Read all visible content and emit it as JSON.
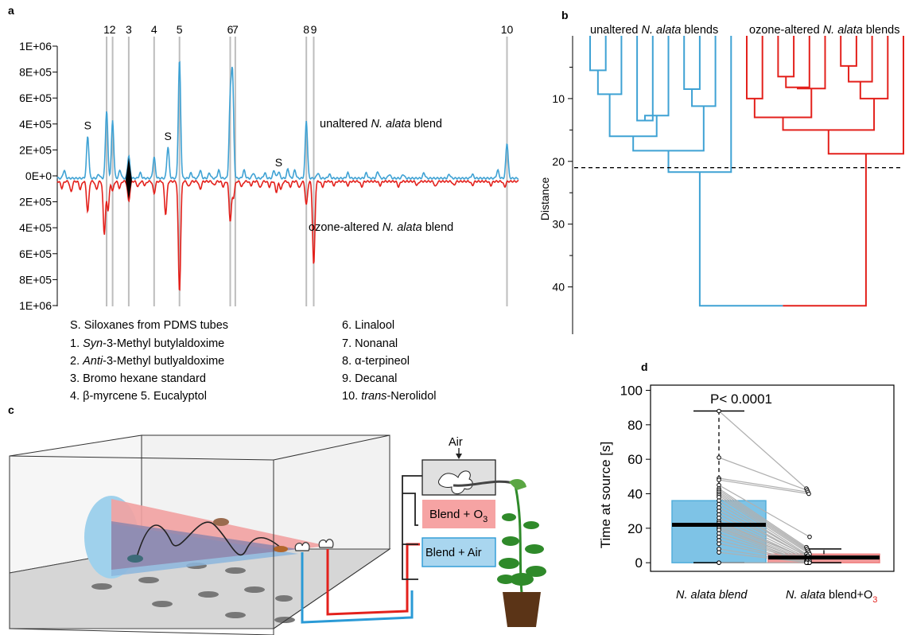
{
  "panel_labels": {
    "a": "a",
    "b": "b",
    "c": "c",
    "d": "d"
  },
  "chart_data": [
    {
      "panel": "a",
      "type": "line",
      "title": "",
      "ylabel": "",
      "yticks": [
        "1E+06",
        "8E+05",
        "6E+05",
        "4E+05",
        "2E+05",
        "0E+0",
        "2E+05",
        "4E+05",
        "6E+05",
        "8E+05",
        "1E+06"
      ],
      "ylim": [
        -1000000,
        1000000
      ],
      "xlim": [
        0,
        100
      ],
      "marker_lines": [
        {
          "label": "1",
          "x": 10.7
        },
        {
          "label": "2",
          "x": 12.0
        },
        {
          "label": "3",
          "x": 15.5
        },
        {
          "label": "4",
          "x": 21.0
        },
        {
          "label": "5",
          "x": 26.5
        },
        {
          "label": "6",
          "x": 37.5
        },
        {
          "label": "7",
          "x": 38.6
        },
        {
          "label": "8",
          "x": 54.0
        },
        {
          "label": "9",
          "x": 55.6
        },
        {
          "label": "10",
          "x": 97.5
        }
      ],
      "annotations_S": [
        {
          "label": "S",
          "x": 6.6,
          "y": 360000
        },
        {
          "label": "S",
          "x": 24.0,
          "y": 280000
        },
        {
          "label": "S",
          "x": 48.0,
          "y": 80000
        }
      ],
      "series": [
        {
          "name_prefix": "unaltered ",
          "name_italic": "N. alata",
          "name_suffix": " blend",
          "color": "#3fa2d4",
          "direction": 1,
          "peaks": [
            [
              1.5,
              60000
            ],
            [
              6.6,
              320000
            ],
            [
              9.0,
              30000
            ],
            [
              10.7,
              520000
            ],
            [
              12.0,
              440000
            ],
            [
              13.6,
              60000
            ],
            [
              15.5,
              170000
            ],
            [
              18.0,
              40000
            ],
            [
              21.0,
              160000
            ],
            [
              24.0,
              240000
            ],
            [
              26.5,
              900000
            ],
            [
              29.0,
              40000
            ],
            [
              31.0,
              60000
            ],
            [
              33.0,
              40000
            ],
            [
              35.0,
              60000
            ],
            [
              37.5,
              570000
            ],
            [
              38.0,
              760000
            ],
            [
              40.5,
              60000
            ],
            [
              42.5,
              40000
            ],
            [
              45.0,
              40000
            ],
            [
              47.0,
              60000
            ],
            [
              48.0,
              50000
            ],
            [
              50.0,
              70000
            ],
            [
              51.5,
              60000
            ],
            [
              54.0,
              440000
            ],
            [
              56.5,
              40000
            ],
            [
              59.0,
              30000
            ],
            [
              63.0,
              40000
            ],
            [
              67.0,
              40000
            ],
            [
              69.5,
              50000
            ],
            [
              72.0,
              30000
            ],
            [
              75.0,
              30000
            ],
            [
              79.5,
              40000
            ],
            [
              85.0,
              30000
            ],
            [
              90.0,
              30000
            ],
            [
              95.5,
              60000
            ],
            [
              97.5,
              270000
            ]
          ]
        },
        {
          "name_prefix": "ozone-altered ",
          "name_italic": "N. alata",
          "name_suffix": " blend",
          "color": "#e3211c",
          "direction": -1,
          "peaks": [
            [
              1.0,
              50000
            ],
            [
              3.0,
              80000
            ],
            [
              5.0,
              60000
            ],
            [
              6.6,
              230000
            ],
            [
              8.5,
              60000
            ],
            [
              10.2,
              400000
            ],
            [
              11.0,
              220000
            ],
            [
              12.0,
              70000
            ],
            [
              13.5,
              50000
            ],
            [
              15.5,
              150000
            ],
            [
              17.5,
              40000
            ],
            [
              19.0,
              30000
            ],
            [
              21.0,
              90000
            ],
            [
              23.5,
              250000
            ],
            [
              26.5,
              840000
            ],
            [
              28.5,
              40000
            ],
            [
              31.0,
              60000
            ],
            [
              34.0,
              30000
            ],
            [
              36.0,
              40000
            ],
            [
              37.5,
              300000
            ],
            [
              38.2,
              120000
            ],
            [
              40.0,
              40000
            ],
            [
              42.0,
              30000
            ],
            [
              44.0,
              50000
            ],
            [
              46.0,
              40000
            ],
            [
              47.5,
              80000
            ],
            [
              48.5,
              60000
            ],
            [
              50.5,
              40000
            ],
            [
              52.5,
              50000
            ],
            [
              54.0,
              180000
            ],
            [
              55.6,
              640000
            ],
            [
              57.5,
              40000
            ],
            [
              60.0,
              30000
            ],
            [
              63.0,
              30000
            ],
            [
              66.0,
              40000
            ],
            [
              70.0,
              30000
            ],
            [
              74.0,
              40000
            ],
            [
              78.0,
              30000
            ],
            [
              82.0,
              40000
            ],
            [
              86.0,
              30000
            ],
            [
              90.0,
              30000
            ],
            [
              94.0,
              30000
            ],
            [
              97.0,
              40000
            ]
          ]
        }
      ],
      "legend_lines": [
        {
          "prefix": "S. Siloxanes from PDMS tubes",
          "italic": "",
          "suffix": ""
        },
        {
          "prefix": "1. ",
          "italic": "Syn",
          "suffix": "-3-Methyl butylaldoxime"
        },
        {
          "prefix": "2. ",
          "italic": "Anti",
          "suffix": "-3-Methyl butlyaldoxime"
        },
        {
          "prefix": "3. Bromo hexane standard",
          "italic": "",
          "suffix": ""
        },
        {
          "prefix": "4. β-myrcene    5. Eucalyptol",
          "italic": "",
          "suffix": ""
        },
        {
          "prefix": "6. Linalool",
          "italic": "",
          "suffix": ""
        },
        {
          "prefix": "7. Nonanal",
          "italic": "",
          "suffix": ""
        },
        {
          "prefix": "8. α-terpineol",
          "italic": "",
          "suffix": ""
        },
        {
          "prefix": "9. Decanal",
          "italic": "",
          "suffix": ""
        },
        {
          "prefix": "10. ",
          "italic": "trans",
          "suffix": "-Nerolidol"
        }
      ]
    },
    {
      "panel": "b",
      "type": "dendrogram",
      "ylabel": "Distance",
      "yticks": [
        10,
        20,
        30,
        40
      ],
      "ylim": [
        0,
        45
      ],
      "cut_height": 21,
      "group_labels": [
        {
          "prefix": "unaltered ",
          "italic": "N. alata",
          "suffix": " blends",
          "color": "#3fa2d4"
        },
        {
          "prefix": "ozone-altered ",
          "italic": "N. alata",
          "suffix": " blends",
          "color": "#e3211c"
        }
      ],
      "colors": {
        "unaltered": "#3fa2d4",
        "ozone": "#e3211c"
      },
      "leaves": 20,
      "merges": [
        {
          "id": "A1",
          "left": 0,
          "right": 1,
          "height": 5.5,
          "color": "unaltered"
        },
        {
          "id": "A2",
          "left": "A1",
          "right": 2,
          "height": 9.3,
          "color": "unaltered"
        },
        {
          "id": "A3",
          "left": 3,
          "right": 4,
          "height": 13.5,
          "color": "unaltered"
        },
        {
          "id": "A4",
          "left": "A3",
          "right": 5,
          "height": 12.7,
          "color": "unaltered"
        },
        {
          "id": "A5",
          "left": "A2",
          "right": "A4",
          "height": 16.0,
          "color": "unaltered"
        },
        {
          "id": "A6",
          "left": 6,
          "right": 7,
          "height": 8.5,
          "color": "unaltered"
        },
        {
          "id": "A7",
          "left": "A6",
          "right": 8,
          "height": 11.2,
          "color": "unaltered"
        },
        {
          "id": "A8",
          "left": "A5",
          "right": "A7",
          "height": 18.3,
          "color": "unaltered"
        },
        {
          "id": "A9",
          "left": "A8",
          "right": 9,
          "height": 21.7,
          "color": "unaltered"
        },
        {
          "id": "B1",
          "left": 10,
          "right": 11,
          "height": 10.0,
          "color": "ozone"
        },
        {
          "id": "B2",
          "left": 12,
          "right": 13,
          "height": 6.5,
          "color": "ozone"
        },
        {
          "id": "B3",
          "left": "B2",
          "right": 14,
          "height": 8.2,
          "color": "ozone"
        },
        {
          "id": "B4",
          "left": "B3",
          "right": 15,
          "height": 8.4,
          "color": "ozone"
        },
        {
          "id": "B5",
          "left": "B1",
          "right": "B4",
          "height": 13.0,
          "color": "ozone"
        },
        {
          "id": "B6",
          "left": 16,
          "right": 17,
          "height": 4.8,
          "color": "ozone"
        },
        {
          "id": "B7",
          "left": "B6",
          "right": 18,
          "height": 7.3,
          "color": "ozone"
        },
        {
          "id": "B8",
          "left": "B7",
          "right": 19,
          "height": 10.0,
          "color": "ozone"
        },
        {
          "id": "B9",
          "left": "B5",
          "right": "B8",
          "height": 15.0,
          "color": "ozone"
        },
        {
          "id": "B10",
          "left": "B9",
          "right": 20,
          "height": 18.8,
          "color": "ozone"
        },
        {
          "id": "R",
          "left": "A9",
          "right": "B10",
          "height": 43.0,
          "color": "split"
        }
      ]
    },
    {
      "panel": "d",
      "type": "box",
      "title": "P< 0.0001",
      "ylabel": "Time at source [s]",
      "yticks": [
        0,
        20,
        40,
        60,
        80,
        100
      ],
      "ylim": [
        -5,
        103
      ],
      "categories": [
        {
          "prefix": "",
          "italic": "N. alata blend",
          "suffix": "",
          "sub": ""
        },
        {
          "prefix": "",
          "italic": "N. alata",
          "suffix": " blend+O",
          "sub": "3"
        }
      ],
      "boxes": [
        {
          "q1": 0,
          "median": 22,
          "q3": 36,
          "whisker_low": 0,
          "whisker_high": 88,
          "color": "#7ec3e6",
          "edge": "#52aedb"
        },
        {
          "q1": 0,
          "median": 3,
          "q3": 5,
          "whisker_low": 0,
          "whisker_high": 8,
          "color": "#f39a9a",
          "edge": "#ef8080"
        }
      ],
      "paired_values": [
        [
          88,
          43
        ],
        [
          61,
          42
        ],
        [
          49,
          41
        ],
        [
          48,
          40
        ],
        [
          45,
          15
        ],
        [
          43,
          9
        ],
        [
          42,
          8
        ],
        [
          41,
          7
        ],
        [
          40,
          6
        ],
        [
          39,
          5
        ],
        [
          38,
          5
        ],
        [
          36,
          4
        ],
        [
          34,
          4
        ],
        [
          32,
          3
        ],
        [
          30,
          3
        ],
        [
          28,
          3
        ],
        [
          26,
          2
        ],
        [
          24,
          2
        ],
        [
          23,
          2
        ],
        [
          22,
          1
        ],
        [
          21,
          1
        ],
        [
          20,
          1
        ],
        [
          19,
          0
        ],
        [
          17,
          0
        ],
        [
          15,
          0
        ],
        [
          13,
          0
        ],
        [
          11,
          0
        ],
        [
          8,
          0
        ],
        [
          6,
          0
        ],
        [
          0,
          0
        ],
        [
          0,
          0
        ]
      ]
    }
  ],
  "schematic": {
    "air_label": "Air",
    "blend_o3_label": "Blend + O",
    "blend_o3_sub": "3",
    "blend_air_label": "Blend + Air",
    "colors": {
      "blue": "#2a9ad6",
      "red": "#e3211c",
      "pink": "#f6a3a3",
      "lightblue": "#a9d6ef",
      "grey": "#d9d9d9",
      "plant": "#2f8a2a",
      "pot": "#5b3417"
    }
  }
}
